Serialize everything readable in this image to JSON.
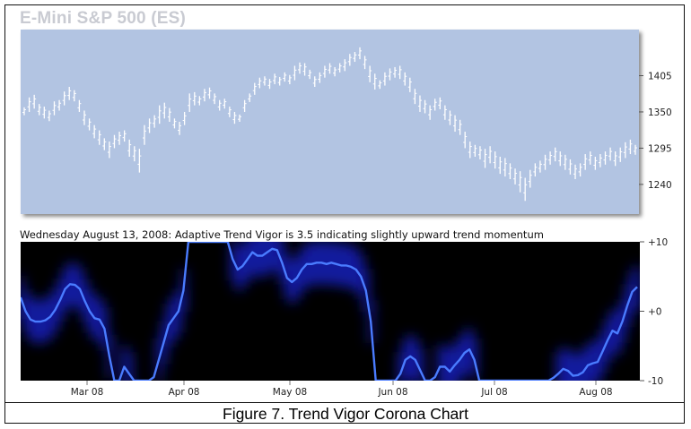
{
  "title": "E-Mini S&P 500 (ES)",
  "status_text": "Wednesday August 13, 2008: Adaptive Trend Vigor is 3.5 indicating slightly upward trend momentum",
  "caption": "Figure 7.  Trend Vigor Corona Chart",
  "colors": {
    "price_panel_bg": "#b2c4e2",
    "price_bars": "#ffffff",
    "indicator_bg": "#000000",
    "indicator_line": "#4a7cff",
    "corona_glow": "#1e2cff"
  },
  "chart_data": [
    {
      "type": "ohlc-bar",
      "title": "E-Mini S&P 500 (ES)",
      "ylim": [
        1195,
        1475
      ],
      "y_ticks": [
        1405,
        1350,
        1295,
        1240
      ],
      "y_tick_labels": [
        "1405",
        "1350",
        "1295",
        "1240"
      ],
      "grid": false,
      "bars": [
        [
          1357,
          1345
        ],
        [
          1372,
          1350
        ],
        [
          1376,
          1355
        ],
        [
          1362,
          1345
        ],
        [
          1358,
          1340
        ],
        [
          1352,
          1336
        ],
        [
          1366,
          1345
        ],
        [
          1368,
          1352
        ],
        [
          1381,
          1360
        ],
        [
          1388,
          1368
        ],
        [
          1383,
          1366
        ],
        [
          1368,
          1350
        ],
        [
          1352,
          1330
        ],
        [
          1340,
          1322
        ],
        [
          1330,
          1310
        ],
        [
          1322,
          1300
        ],
        [
          1310,
          1292
        ],
        [
          1305,
          1280
        ],
        [
          1315,
          1295
        ],
        [
          1320,
          1300
        ],
        [
          1322,
          1305
        ],
        [
          1308,
          1282
        ],
        [
          1298,
          1275
        ],
        [
          1294,
          1258
        ],
        [
          1330,
          1300
        ],
        [
          1340,
          1318
        ],
        [
          1345,
          1326
        ],
        [
          1360,
          1332
        ],
        [
          1364,
          1340
        ],
        [
          1356,
          1335
        ],
        [
          1340,
          1325
        ],
        [
          1335,
          1315
        ],
        [
          1350,
          1330
        ],
        [
          1378,
          1350
        ],
        [
          1380,
          1360
        ],
        [
          1374,
          1360
        ],
        [
          1385,
          1366
        ],
        [
          1387,
          1370
        ],
        [
          1378,
          1362
        ],
        [
          1368,
          1352
        ],
        [
          1370,
          1355
        ],
        [
          1358,
          1342
        ],
        [
          1350,
          1332
        ],
        [
          1346,
          1335
        ],
        [
          1368,
          1350
        ],
        [
          1378,
          1365
        ],
        [
          1394,
          1376
        ],
        [
          1402,
          1386
        ],
        [
          1404,
          1390
        ],
        [
          1400,
          1385
        ],
        [
          1408,
          1392
        ],
        [
          1403,
          1390
        ],
        [
          1410,
          1396
        ],
        [
          1406,
          1392
        ],
        [
          1420,
          1398
        ],
        [
          1425,
          1408
        ],
        [
          1424,
          1405
        ],
        [
          1414,
          1400
        ],
        [
          1404,
          1388
        ],
        [
          1410,
          1394
        ],
        [
          1420,
          1402
        ],
        [
          1424,
          1408
        ],
        [
          1418,
          1404
        ],
        [
          1424,
          1410
        ],
        [
          1430,
          1412
        ],
        [
          1438,
          1420
        ],
        [
          1441,
          1426
        ],
        [
          1448,
          1430
        ],
        [
          1435,
          1415
        ],
        [
          1420,
          1395
        ],
        [
          1408,
          1384
        ],
        [
          1398,
          1385
        ],
        [
          1410,
          1390
        ],
        [
          1416,
          1398
        ],
        [
          1418,
          1402
        ],
        [
          1420,
          1400
        ],
        [
          1410,
          1390
        ],
        [
          1402,
          1380
        ],
        [
          1385,
          1362
        ],
        [
          1375,
          1350
        ],
        [
          1368,
          1348
        ],
        [
          1360,
          1338
        ],
        [
          1370,
          1352
        ],
        [
          1372,
          1354
        ],
        [
          1360,
          1338
        ],
        [
          1352,
          1330
        ],
        [
          1345,
          1320
        ],
        [
          1338,
          1315
        ],
        [
          1320,
          1295
        ],
        [
          1305,
          1280
        ],
        [
          1300,
          1282
        ],
        [
          1298,
          1278
        ],
        [
          1294,
          1265
        ],
        [
          1298,
          1272
        ],
        [
          1290,
          1264
        ],
        [
          1282,
          1256
        ],
        [
          1280,
          1252
        ],
        [
          1272,
          1248
        ],
        [
          1264,
          1240
        ],
        [
          1260,
          1228
        ],
        [
          1250,
          1215
        ],
        [
          1262,
          1235
        ],
        [
          1272,
          1252
        ],
        [
          1276,
          1258
        ],
        [
          1285,
          1262
        ],
        [
          1290,
          1270
        ],
        [
          1296,
          1275
        ],
        [
          1290,
          1268
        ],
        [
          1285,
          1262
        ],
        [
          1278,
          1255
        ],
        [
          1270,
          1248
        ],
        [
          1272,
          1252
        ],
        [
          1286,
          1262
        ],
        [
          1290,
          1270
        ],
        [
          1282,
          1262
        ],
        [
          1286,
          1266
        ],
        [
          1290,
          1270
        ],
        [
          1296,
          1276
        ],
        [
          1290,
          1268
        ],
        [
          1296,
          1274
        ],
        [
          1304,
          1280
        ],
        [
          1308,
          1286
        ],
        [
          1300,
          1285
        ]
      ]
    },
    {
      "type": "line",
      "title": "Adaptive Trend Vigor",
      "ylim": [
        -10,
        10
      ],
      "y_ticks": [
        10,
        0,
        -10
      ],
      "y_tick_labels": [
        "+10",
        "+0",
        "-10"
      ],
      "x_tick_labels": [
        "Mar 08",
        "Apr 08",
        "May 08",
        "Jun 08",
        "Jul 08",
        "Aug 08"
      ],
      "grid": false,
      "values": [
        2.0,
        0.0,
        -1.2,
        -1.5,
        -1.5,
        -1.3,
        -0.8,
        0.2,
        1.6,
        3.2,
        3.9,
        3.8,
        3.2,
        1.5,
        0.0,
        -1.0,
        -1.2,
        -2.5,
        -6.5,
        -10.0,
        -10.0,
        -8.0,
        -9.0,
        -10.0,
        -10.0,
        -10.0,
        -10.0,
        -9.5,
        -7.0,
        -4.5,
        -2.0,
        -1.0,
        0.0,
        3.0,
        10.0,
        10.0,
        10.0,
        10.0,
        10.0,
        10.0,
        10.0,
        10.0,
        10.0,
        7.5,
        6.0,
        6.5,
        7.5,
        8.5,
        8.0,
        8.0,
        8.5,
        9.0,
        8.8,
        7.0,
        4.8,
        4.2,
        4.8,
        6.0,
        6.8,
        6.8,
        7.0,
        7.0,
        6.8,
        7.0,
        6.8,
        6.6,
        6.6,
        6.4,
        6.0,
        5.0,
        3.0,
        -1.5,
        -10.0,
        -10.0,
        -10.0,
        -10.0,
        -10.0,
        -9.0,
        -7.0,
        -6.5,
        -7.0,
        -8.5,
        -10.0,
        -10.0,
        -9.5,
        -8.0,
        -8.0,
        -8.7,
        -7.8,
        -7.0,
        -6.0,
        -5.5,
        -7.0,
        -10.0,
        -10.0,
        -10.0,
        -10.0,
        -10.0,
        -10.0,
        -10.0,
        -10.0,
        -10.0,
        -10.0,
        -10.0,
        -10.0,
        -10.0,
        -10.0,
        -10.0,
        -9.6,
        -9.0,
        -8.3,
        -8.6,
        -9.3,
        -9.2,
        -8.8,
        -7.8,
        -7.5,
        -7.3,
        -5.8,
        -4.2,
        -2.8,
        -3.2,
        -1.5,
        0.8,
        2.8,
        3.5
      ]
    }
  ]
}
